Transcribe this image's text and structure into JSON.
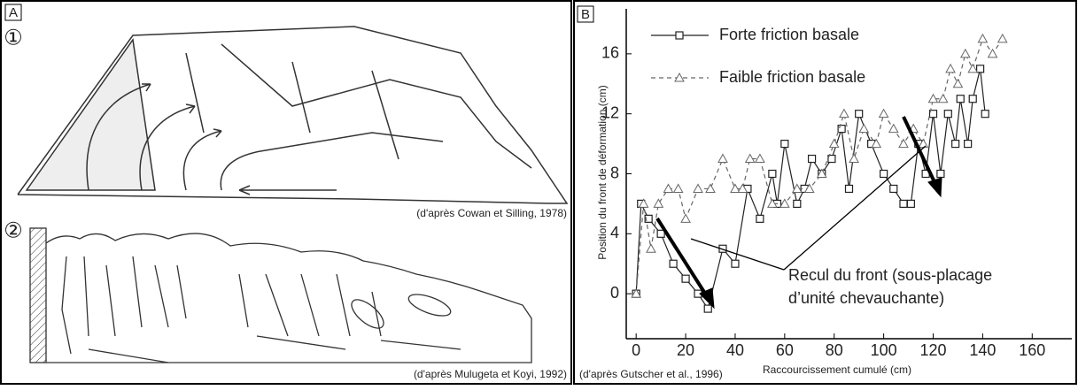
{
  "panel_a": {
    "label": "A",
    "part_1": "①",
    "part_2": "②",
    "credit_1": "(d'après Cowan et Silling, 1978)",
    "credit_2": "(d'après Mulugeta et Koyi, 1992)"
  },
  "chart_data": {
    "type": "line",
    "label": "B",
    "x_label": "Raccourcissement cumulé (cm)",
    "y_label": "Position du front de déformation (cm)",
    "credit": "(d'après Gutscher et al., 1996)",
    "annotation": [
      "Recul du front (sous-placage",
      "d’unité chevauchante)"
    ],
    "xlim": [
      -4,
      176
    ],
    "xticks": [
      0,
      20,
      40,
      60,
      80,
      100,
      120,
      140,
      160
    ],
    "ylim": [
      -3,
      19
    ],
    "yticks": [
      0,
      4,
      8,
      12,
      16
    ],
    "series": [
      {
        "name": "Forte friction basale",
        "color": "#222222",
        "marker": "square",
        "dashed": false,
        "x": [
          0,
          2,
          5,
          10,
          15,
          20,
          25,
          29,
          35,
          40,
          45,
          50,
          55,
          57,
          60,
          65,
          68,
          71,
          75,
          79,
          83,
          86,
          90,
          95,
          100,
          104,
          108,
          111,
          114,
          117,
          120,
          123,
          126,
          129,
          131,
          134,
          136,
          139,
          141
        ],
        "values": [
          0,
          6,
          5,
          4,
          2,
          1,
          0,
          -1,
          3,
          2,
          7,
          5,
          8,
          6,
          10,
          6,
          7,
          9,
          8,
          9,
          11,
          7,
          12,
          10,
          8,
          7,
          6,
          6,
          10,
          8,
          12,
          8,
          12,
          10,
          13,
          10,
          13,
          15,
          12
        ]
      },
      {
        "name": "Faible friction basale",
        "color": "#666666",
        "marker": "triangle",
        "dashed": true,
        "x": [
          0,
          3,
          6,
          9,
          13,
          17,
          20,
          25,
          30,
          35,
          40,
          43,
          46,
          50,
          55,
          60,
          65,
          70,
          75,
          80,
          84,
          88,
          92,
          97,
          100,
          104,
          108,
          112,
          116,
          120,
          124,
          127,
          130,
          133,
          136,
          140,
          144,
          148
        ],
        "values": [
          0,
          6,
          3,
          6,
          7,
          7,
          5,
          7,
          7,
          9,
          7,
          7,
          9,
          9,
          6,
          6,
          7,
          7,
          8,
          10,
          12,
          9,
          11,
          10,
          12,
          11,
          10,
          11,
          10,
          13,
          13,
          15,
          14,
          16,
          15,
          17,
          16,
          17
        ]
      }
    ]
  }
}
